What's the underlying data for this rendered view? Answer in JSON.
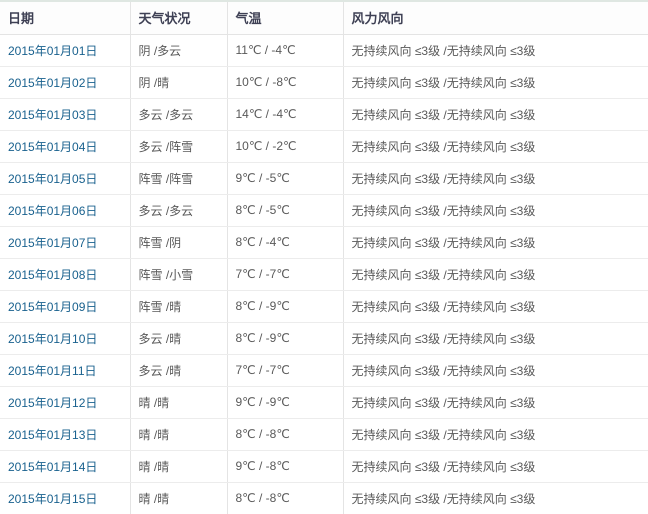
{
  "colors": {
    "background": "#ffffff",
    "header_text": "#3e4054",
    "body_text": "#595959",
    "date_link": "#19618e",
    "row_border": "#ececec",
    "column_border": "#e4e4e4",
    "top_accent_border": "#dfe7e2"
  },
  "table": {
    "headers": [
      {
        "key": "date",
        "label": "日期"
      },
      {
        "key": "weather",
        "label": "天气状况"
      },
      {
        "key": "temp",
        "label": "气温"
      },
      {
        "key": "wind",
        "label": "风力风向"
      }
    ],
    "rows": [
      {
        "date": "2015年01月01日",
        "weather": "阴 /多云",
        "temp": "11℃ / -4℃",
        "wind": "无持续风向 ≤3级 /无持续风向 ≤3级"
      },
      {
        "date": "2015年01月02日",
        "weather": "阴 /晴",
        "temp": "10℃ / -8℃",
        "wind": "无持续风向 ≤3级 /无持续风向 ≤3级"
      },
      {
        "date": "2015年01月03日",
        "weather": "多云 /多云",
        "temp": "14℃ / -4℃",
        "wind": "无持续风向 ≤3级 /无持续风向 ≤3级"
      },
      {
        "date": "2015年01月04日",
        "weather": "多云 /阵雪",
        "temp": "10℃ / -2℃",
        "wind": "无持续风向 ≤3级 /无持续风向 ≤3级"
      },
      {
        "date": "2015年01月05日",
        "weather": "阵雪 /阵雪",
        "temp": "9℃ / -5℃",
        "wind": "无持续风向 ≤3级 /无持续风向 ≤3级"
      },
      {
        "date": "2015年01月06日",
        "weather": "多云 /多云",
        "temp": "8℃ / -5℃",
        "wind": "无持续风向 ≤3级 /无持续风向 ≤3级"
      },
      {
        "date": "2015年01月07日",
        "weather": "阵雪 /阴",
        "temp": "8℃ / -4℃",
        "wind": "无持续风向 ≤3级 /无持续风向 ≤3级"
      },
      {
        "date": "2015年01月08日",
        "weather": "阵雪 /小雪",
        "temp": "7℃ / -7℃",
        "wind": "无持续风向 ≤3级 /无持续风向 ≤3级"
      },
      {
        "date": "2015年01月09日",
        "weather": "阵雪 /晴",
        "temp": "8℃ / -9℃",
        "wind": "无持续风向 ≤3级 /无持续风向 ≤3级"
      },
      {
        "date": "2015年01月10日",
        "weather": "多云 /晴",
        "temp": "8℃ / -9℃",
        "wind": "无持续风向 ≤3级 /无持续风向 ≤3级"
      },
      {
        "date": "2015年01月11日",
        "weather": "多云 /晴",
        "temp": "7℃ / -7℃",
        "wind": "无持续风向 ≤3级 /无持续风向 ≤3级"
      },
      {
        "date": "2015年01月12日",
        "weather": "晴 /晴",
        "temp": "9℃ / -9℃",
        "wind": "无持续风向 ≤3级 /无持续风向 ≤3级"
      },
      {
        "date": "2015年01月13日",
        "weather": "晴 /晴",
        "temp": "8℃ / -8℃",
        "wind": "无持续风向 ≤3级 /无持续风向 ≤3级"
      },
      {
        "date": "2015年01月14日",
        "weather": "晴 /晴",
        "temp": "9℃ / -8℃",
        "wind": "无持续风向 ≤3级 /无持续风向 ≤3级"
      },
      {
        "date": "2015年01月15日",
        "weather": "晴 /晴",
        "temp": "8℃ / -8℃",
        "wind": "无持续风向 ≤3级 /无持续风向 ≤3级"
      }
    ]
  }
}
